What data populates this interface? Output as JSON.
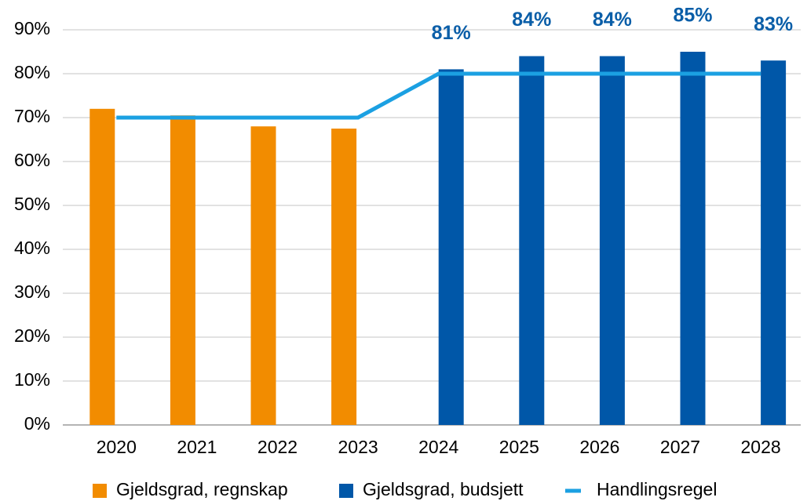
{
  "chart_data": {
    "type": "bar",
    "categories": [
      "2020",
      "2021",
      "2022",
      "2023",
      "2024",
      "2025",
      "2026",
      "2027",
      "2028"
    ],
    "series": [
      {
        "name": "Gjeldsgrad, regnskap",
        "type": "bar",
        "color": "#f28c00",
        "values": [
          72,
          70.5,
          68,
          67.5,
          null,
          null,
          null,
          null,
          null
        ]
      },
      {
        "name": "Gjeldsgrad, budsjett",
        "type": "bar",
        "color": "#0057a8",
        "values": [
          null,
          null,
          null,
          null,
          81,
          84,
          84,
          85,
          83
        ],
        "value_labels": [
          null,
          null,
          null,
          null,
          "81%",
          "84%",
          "84%",
          "85%",
          "83%"
        ]
      },
      {
        "name": "Handlingsregel",
        "type": "line",
        "color": "#1ba0e2",
        "values": [
          70,
          70,
          70,
          70,
          80,
          80,
          80,
          80,
          80
        ]
      }
    ],
    "ylim": [
      0,
      90
    ],
    "yticks": [
      {
        "value": 0,
        "label": "0%"
      },
      {
        "value": 10,
        "label": "10%"
      },
      {
        "value": 20,
        "label": "20%"
      },
      {
        "value": 30,
        "label": "30%"
      },
      {
        "value": 40,
        "label": "40%"
      },
      {
        "value": 50,
        "label": "50%"
      },
      {
        "value": 60,
        "label": "60%"
      },
      {
        "value": 70,
        "label": "70%"
      },
      {
        "value": 80,
        "label": "80%"
      },
      {
        "value": 90,
        "label": "90%"
      }
    ],
    "grid": true,
    "legend": "bottom"
  }
}
